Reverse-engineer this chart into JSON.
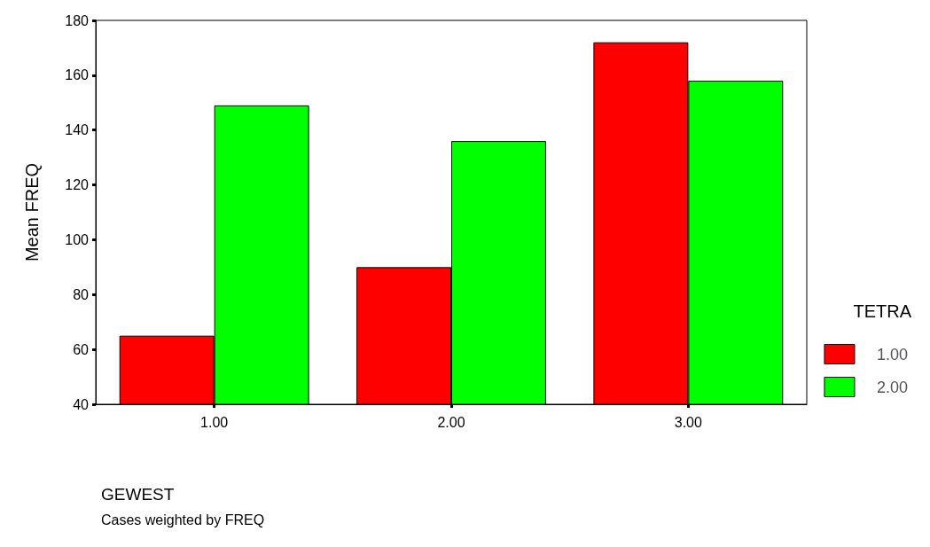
{
  "chart_data": {
    "type": "bar",
    "categories": [
      "1.00",
      "2.00",
      "3.00"
    ],
    "series": [
      {
        "name": "1.00",
        "color": "#ff0000",
        "values": [
          65,
          90,
          172
        ]
      },
      {
        "name": "2.00",
        "color": "#00ff00",
        "values": [
          149,
          136,
          158
        ]
      }
    ],
    "xlabel": "GEWEST",
    "ylabel": "Mean FREQ",
    "legend_title": "TETRA",
    "legend": "right",
    "ylim": [
      40,
      180
    ],
    "yticks": [
      40,
      60,
      80,
      100,
      120,
      140,
      160,
      180
    ],
    "grid": false,
    "annotations": [
      "Cases weighted by FREQ"
    ]
  }
}
